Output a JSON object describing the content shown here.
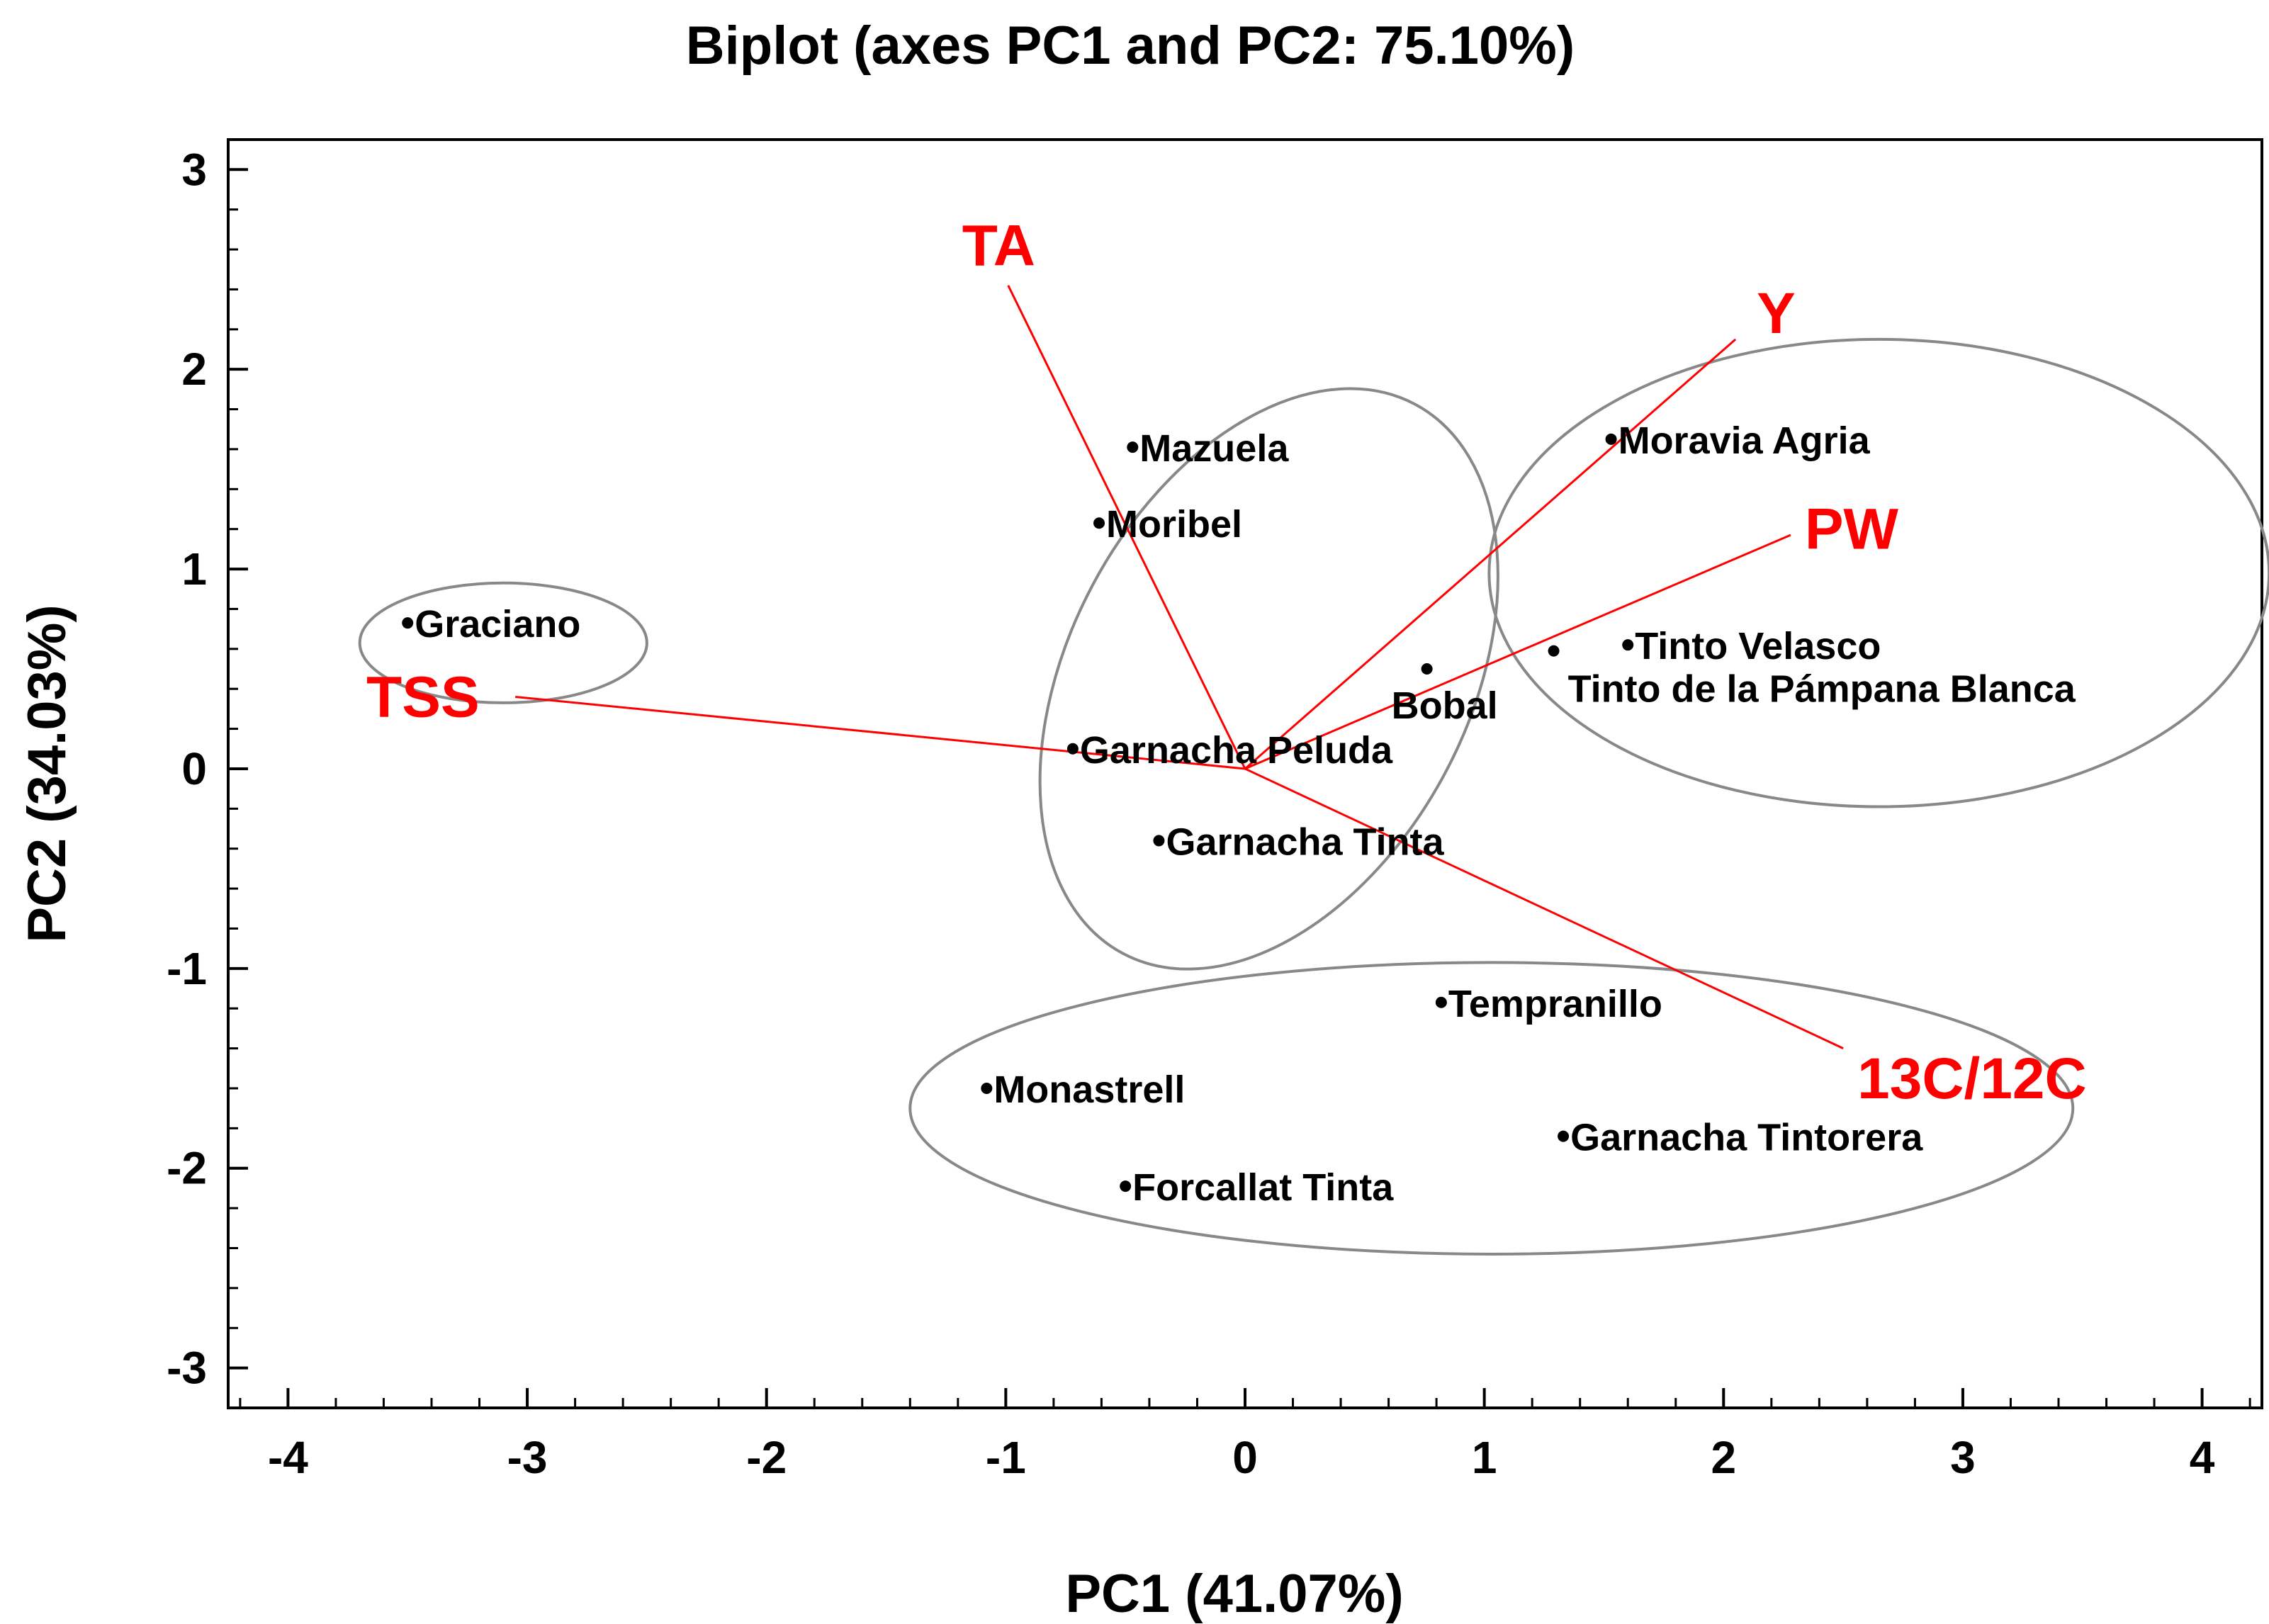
{
  "chart_data": {
    "type": "scatter",
    "title": "Biplot (axes PC1 and PC2: 75.10%)",
    "xlabel": "PC1 (41.07%)",
    "ylabel": "PC2 (34.03%)",
    "xlim": [
      -4.25,
      4.25
    ],
    "ylim": [
      -3.2,
      3.15
    ],
    "xticks": [
      -4,
      -3,
      -2,
      -1,
      0,
      1,
      2,
      3,
      4
    ],
    "yticks": [
      -3,
      -2,
      -1,
      0,
      1,
      2,
      3
    ],
    "xtick_labels": [
      "-4",
      "-3",
      "-2",
      "-1",
      "0",
      "1",
      "2",
      "3",
      "4"
    ],
    "ytick_labels": [
      "-3",
      "-2",
      "-1",
      "0",
      "1",
      "2",
      "3"
    ],
    "grid": false,
    "observations": [
      {
        "name": "Graciano",
        "x": -3.5,
        "y": 0.73
      },
      {
        "name": "Mazuela",
        "x": -0.47,
        "y": 1.61
      },
      {
        "name": "Moribel",
        "x": -0.61,
        "y": 1.23
      },
      {
        "name": "Garnacha Peluda",
        "x": -0.72,
        "y": 0.1
      },
      {
        "name": "Garnacha Tinta",
        "x": -0.36,
        "y": -0.36
      },
      {
        "name": "Bobal",
        "x": 0.76,
        "y": 0.5
      },
      {
        "name": "Moravia Agria",
        "x": 1.53,
        "y": 1.65
      },
      {
        "name": "Tinto Velasco",
        "x": 1.6,
        "y": 0.62
      },
      {
        "name": "Tinto de la Pámpana Blanca",
        "x": 1.29,
        "y": 0.59
      },
      {
        "name": "Tempranillo",
        "x": 0.82,
        "y": -1.17
      },
      {
        "name": "Monastrell",
        "x": -1.08,
        "y": -1.6
      },
      {
        "name": "Garnacha Tintorera",
        "x": 1.33,
        "y": -1.84
      },
      {
        "name": "Forcallat Tinta",
        "x": -0.5,
        "y": -2.09
      }
    ],
    "variables": [
      {
        "name": "TA",
        "x": -0.99,
        "y": 2.42
      },
      {
        "name": "Y",
        "x": 2.05,
        "y": 2.15
      },
      {
        "name": "PW",
        "x": 2.28,
        "y": 1.17
      },
      {
        "name": "TSS",
        "x": -3.05,
        "y": 0.36
      },
      {
        "name": "13C/12C",
        "x": 2.5,
        "y": -1.4
      }
    ],
    "ellipses": [
      {
        "cx": -3.1,
        "cy": 0.63,
        "rx": 0.6,
        "ry": 0.3,
        "angle": 0
      },
      {
        "cx": 0.1,
        "cy": 0.45,
        "rx": 1.3,
        "ry": 1.0,
        "angle": -62
      },
      {
        "cx": 2.65,
        "cy": 0.98,
        "rx": 1.63,
        "ry": 1.17,
        "angle": 0
      },
      {
        "cx": 1.03,
        "cy": -1.7,
        "rx": 2.43,
        "ry": 0.73,
        "angle": 0
      }
    ],
    "colors": {
      "variables": "#ff0000",
      "points": "#000000",
      "ellipses": "#888888"
    }
  }
}
